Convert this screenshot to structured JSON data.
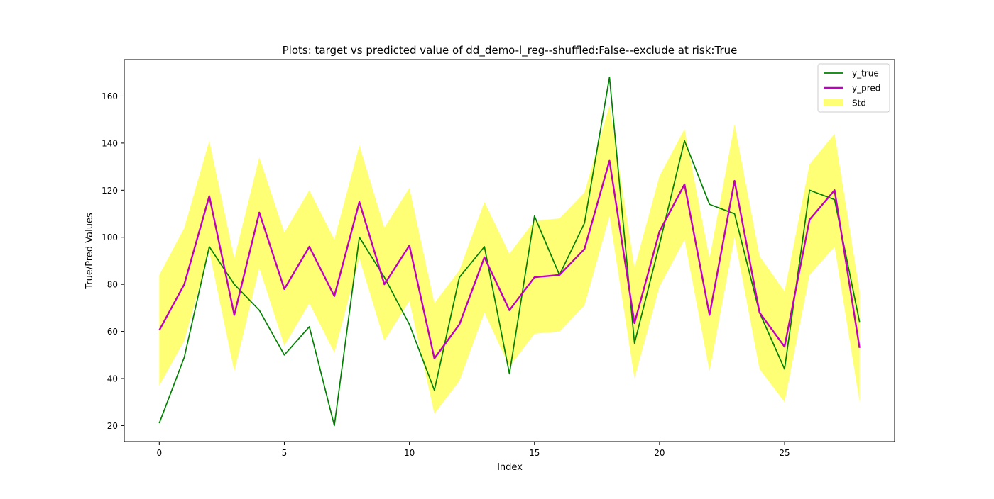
{
  "chart_data": {
    "type": "line",
    "title": "Plots: target vs predicted value of dd_demo-l_reg--shuffled:False--exclude at risk:True",
    "xlabel": "Index",
    "ylabel": "True/Pred Values",
    "xlim": [
      -1.4,
      29.4
    ],
    "ylim": [
      13.2,
      175.5
    ],
    "xticks": [
      0,
      5,
      10,
      15,
      20,
      25
    ],
    "yticks": [
      20,
      40,
      60,
      80,
      100,
      120,
      140,
      160
    ],
    "grid": false,
    "legend_position": "top-right",
    "x": [
      0,
      1,
      2,
      3,
      4,
      5,
      6,
      7,
      8,
      9,
      10,
      11,
      12,
      13,
      14,
      15,
      16,
      17,
      18,
      19,
      20,
      21,
      22,
      23,
      24,
      25,
      26,
      27,
      28
    ],
    "series": [
      {
        "name": "y_true",
        "color": "#008000",
        "values": [
          21,
          49,
          96,
          80,
          69,
          50,
          62,
          20,
          100,
          83,
          63,
          35,
          83,
          96,
          42,
          109,
          84,
          106,
          168,
          55,
          97,
          141,
          114,
          110,
          68,
          44,
          120,
          116,
          64
        ]
      },
      {
        "name": "y_pred",
        "color": "#bf00bf",
        "values": [
          60.5,
          80,
          117.5,
          67,
          110.5,
          78,
          96,
          75,
          115,
          80,
          96.5,
          48.5,
          63,
          91.5,
          69,
          83,
          84,
          95,
          132.5,
          63.5,
          102.5,
          122.5,
          67,
          124,
          68,
          53.5,
          107.5,
          120,
          53
        ]
      }
    ],
    "band": {
      "name": "Std",
      "color": "#ffff66",
      "lower": [
        37,
        56,
        94,
        43,
        87,
        54,
        72,
        51,
        91,
        56,
        73,
        25,
        39,
        68,
        45,
        59,
        60,
        71,
        109,
        40,
        79,
        99,
        43,
        100,
        44,
        30,
        84,
        96,
        30
      ],
      "upper": [
        84,
        104,
        141,
        91,
        134,
        102,
        120,
        99,
        139,
        104,
        121,
        72,
        86,
        115,
        93,
        107,
        108,
        119,
        156,
        87,
        126,
        146,
        91,
        148,
        92,
        77,
        131,
        144,
        77
      ]
    }
  }
}
